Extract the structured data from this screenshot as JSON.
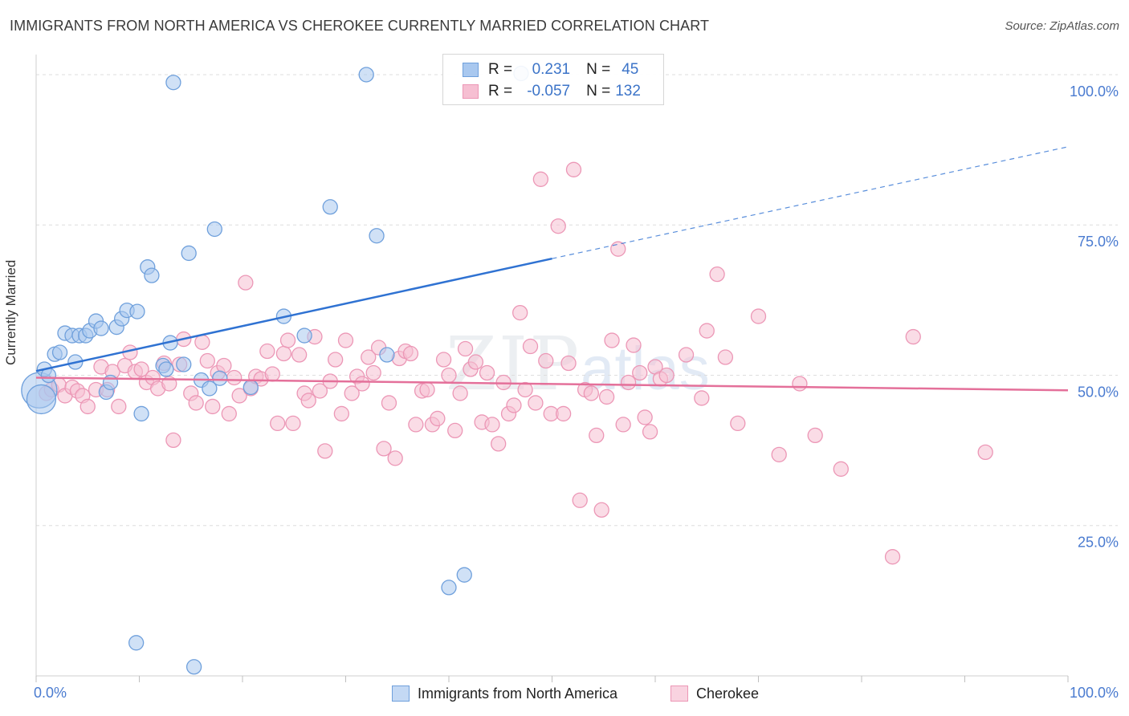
{
  "title": "IMMIGRANTS FROM NORTH AMERICA VS CHEROKEE CURRENTLY MARRIED CORRELATION CHART",
  "source": "Source: ZipAtlas.com",
  "watermark": {
    "zip": "ZIP",
    "atlas": "atlas"
  },
  "legend_top": [
    {
      "r_label": "R =",
      "r_value": "0.231",
      "n_label": "N =",
      "n_value": "45"
    },
    {
      "r_label": "R =",
      "r_value": "-0.057",
      "n_label": "N =",
      "n_value": "132"
    }
  ],
  "colors": {
    "blue_fill": "#a9c8ef",
    "blue_stroke": "#6fa0dc",
    "blue_line": "#2f72d2",
    "pink_fill": "#f6bfd2",
    "pink_stroke": "#ec97b6",
    "pink_line": "#e4709a",
    "tick_label": "#4a7bd0",
    "grid": "#dedede"
  },
  "chart_data": {
    "type": "scatter",
    "title": "IMMIGRANTS FROM NORTH AMERICA VS CHEROKEE CURRENTLY MARRIED CORRELATION CHART",
    "xlabel": "",
    "ylabel": "Currently Married",
    "xlim": [
      0,
      100
    ],
    "ylim": [
      0,
      102
    ],
    "x_tick_labels": [
      "0.0%",
      "100.0%"
    ],
    "y_ticks": [
      25,
      50,
      75,
      100
    ],
    "y_tick_labels": [
      "25.0%",
      "50.0%",
      "75.0%",
      "100.0%"
    ],
    "grid": true,
    "legend_placement": "top-center",
    "series": [
      {
        "name": "Immigrants from North America",
        "color": "#a9c8ef",
        "trend": {
          "x": [
            0,
            50
          ],
          "y": [
            50.7,
            69.4
          ],
          "dashed_extension_to": [
            100,
            88.0
          ]
        },
        "points": [
          [
            0.3,
            47.5,
            22
          ],
          [
            0.5,
            46.0,
            18
          ],
          [
            0.8,
            51.0,
            9
          ],
          [
            1.2,
            50.0,
            9
          ],
          [
            1.8,
            53.5,
            9
          ],
          [
            2.3,
            53.8,
            9
          ],
          [
            2.8,
            57.0,
            9
          ],
          [
            3.5,
            56.6,
            9
          ],
          [
            3.8,
            52.2,
            9
          ],
          [
            4.2,
            56.6,
            9
          ],
          [
            4.8,
            56.6,
            9
          ],
          [
            5.2,
            57.4,
            9
          ],
          [
            5.8,
            59.0,
            9
          ],
          [
            6.3,
            57.8,
            9
          ],
          [
            6.8,
            47.2,
            9
          ],
          [
            7.2,
            48.8,
            9
          ],
          [
            7.8,
            58.0,
            9
          ],
          [
            8.3,
            59.4,
            9
          ],
          [
            8.8,
            60.8,
            9
          ],
          [
            9.8,
            60.6,
            9
          ],
          [
            10.2,
            43.6,
            9
          ],
          [
            10.8,
            68.0,
            9
          ],
          [
            11.2,
            66.6,
            9
          ],
          [
            12.3,
            51.6,
            9
          ],
          [
            12.6,
            51.0,
            9
          ],
          [
            13.0,
            55.4,
            9
          ],
          [
            13.3,
            98.7,
            9
          ],
          [
            14.3,
            51.8,
            9
          ],
          [
            14.8,
            70.3,
            9
          ],
          [
            16.0,
            49.2,
            9
          ],
          [
            16.8,
            47.8,
            9
          ],
          [
            17.3,
            74.3,
            9
          ],
          [
            17.8,
            49.5,
            9
          ],
          [
            20.8,
            48.0,
            9
          ],
          [
            24.0,
            59.8,
            9
          ],
          [
            26.0,
            56.6,
            9
          ],
          [
            28.5,
            78.0,
            9
          ],
          [
            32.0,
            100.0,
            9
          ],
          [
            33.0,
            73.2,
            9
          ],
          [
            34.0,
            53.4,
            9
          ],
          [
            40.0,
            14.7,
            9
          ],
          [
            41.5,
            16.8,
            9
          ],
          [
            9.7,
            5.5,
            9
          ],
          [
            15.3,
            1.5,
            9
          ],
          [
            47.0,
            100.2,
            9
          ]
        ]
      },
      {
        "name": "Cherokee",
        "color": "#f6bfd2",
        "trend": {
          "x": [
            0,
            100
          ],
          "y": [
            49.6,
            47.5
          ]
        },
        "points": [
          [
            1.0,
            47.0,
            9
          ],
          [
            1.5,
            47.6,
            9
          ],
          [
            2.2,
            48.4,
            9
          ],
          [
            2.8,
            46.6,
            9
          ],
          [
            3.5,
            48.0,
            9
          ],
          [
            4.0,
            47.4,
            9
          ],
          [
            4.5,
            46.6,
            9
          ],
          [
            5.0,
            44.8,
            9
          ],
          [
            5.8,
            47.6,
            9
          ],
          [
            6.3,
            51.4,
            9
          ],
          [
            6.9,
            47.6,
            9
          ],
          [
            7.4,
            50.6,
            9
          ],
          [
            8.0,
            44.8,
            9
          ],
          [
            8.6,
            51.6,
            9
          ],
          [
            9.1,
            53.8,
            9
          ],
          [
            9.6,
            50.6,
            9
          ],
          [
            10.2,
            51.0,
            9
          ],
          [
            10.7,
            48.8,
            9
          ],
          [
            11.3,
            49.6,
            9
          ],
          [
            11.8,
            47.8,
            9
          ],
          [
            12.4,
            52.0,
            9
          ],
          [
            12.9,
            48.6,
            9
          ],
          [
            13.3,
            39.2,
            9
          ],
          [
            13.9,
            51.8,
            9
          ],
          [
            14.3,
            56.0,
            9
          ],
          [
            15.0,
            47.0,
            9
          ],
          [
            15.5,
            45.4,
            9
          ],
          [
            16.1,
            55.5,
            9
          ],
          [
            16.6,
            52.4,
            9
          ],
          [
            17.1,
            44.8,
            9
          ],
          [
            17.6,
            50.4,
            9
          ],
          [
            18.2,
            51.6,
            9
          ],
          [
            18.7,
            43.6,
            9
          ],
          [
            19.2,
            49.6,
            9
          ],
          [
            19.7,
            46.6,
            9
          ],
          [
            20.3,
            65.4,
            9
          ],
          [
            20.8,
            47.8,
            9
          ],
          [
            21.3,
            49.8,
            9
          ],
          [
            21.8,
            49.4,
            9
          ],
          [
            22.4,
            54.0,
            9
          ],
          [
            22.9,
            50.2,
            9
          ],
          [
            23.4,
            42.0,
            9
          ],
          [
            24.0,
            53.6,
            9
          ],
          [
            24.4,
            55.8,
            9
          ],
          [
            24.9,
            42.0,
            9
          ],
          [
            25.5,
            53.4,
            9
          ],
          [
            26.0,
            47.0,
            9
          ],
          [
            26.4,
            45.8,
            9
          ],
          [
            27.0,
            56.4,
            9
          ],
          [
            27.5,
            47.4,
            9
          ],
          [
            28.0,
            37.4,
            9
          ],
          [
            28.5,
            49.0,
            9
          ],
          [
            29.0,
            52.6,
            9
          ],
          [
            29.6,
            43.6,
            9
          ],
          [
            30.0,
            55.8,
            9
          ],
          [
            30.6,
            47.0,
            9
          ],
          [
            31.1,
            49.8,
            9
          ],
          [
            31.6,
            48.6,
            9
          ],
          [
            32.2,
            53.0,
            9
          ],
          [
            32.7,
            50.4,
            9
          ],
          [
            33.2,
            54.6,
            9
          ],
          [
            33.7,
            37.8,
            9
          ],
          [
            34.2,
            45.4,
            9
          ],
          [
            34.8,
            36.2,
            9
          ],
          [
            35.2,
            52.8,
            9
          ],
          [
            35.8,
            54.0,
            9
          ],
          [
            36.3,
            53.6,
            9
          ],
          [
            36.8,
            41.8,
            9
          ],
          [
            37.4,
            47.4,
            9
          ],
          [
            37.9,
            47.6,
            9
          ],
          [
            38.4,
            41.8,
            9
          ],
          [
            38.9,
            42.8,
            9
          ],
          [
            39.5,
            52.6,
            9
          ],
          [
            40.0,
            50.0,
            9
          ],
          [
            40.6,
            40.8,
            9
          ],
          [
            41.1,
            47.0,
            9
          ],
          [
            41.6,
            54.4,
            9
          ],
          [
            42.1,
            51.0,
            9
          ],
          [
            42.6,
            52.2,
            9
          ],
          [
            43.2,
            42.2,
            9
          ],
          [
            43.7,
            50.4,
            9
          ],
          [
            44.2,
            41.8,
            9
          ],
          [
            44.8,
            38.6,
            9
          ],
          [
            45.3,
            48.8,
            9
          ],
          [
            45.8,
            43.6,
            9
          ],
          [
            46.3,
            45.0,
            9
          ],
          [
            46.9,
            60.4,
            9
          ],
          [
            47.4,
            47.6,
            9
          ],
          [
            47.9,
            54.8,
            9
          ],
          [
            48.4,
            45.4,
            9
          ],
          [
            48.9,
            82.6,
            9
          ],
          [
            49.4,
            52.4,
            9
          ],
          [
            49.9,
            43.6,
            9
          ],
          [
            50.6,
            74.8,
            9
          ],
          [
            51.1,
            43.6,
            9
          ],
          [
            51.6,
            52.0,
            9
          ],
          [
            52.1,
            84.2,
            9
          ],
          [
            52.7,
            29.2,
            9
          ],
          [
            53.2,
            47.6,
            9
          ],
          [
            53.8,
            47.0,
            9
          ],
          [
            54.3,
            40.0,
            9
          ],
          [
            54.8,
            27.6,
            9
          ],
          [
            55.3,
            46.4,
            9
          ],
          [
            55.8,
            55.8,
            9
          ],
          [
            56.4,
            71.0,
            9
          ],
          [
            56.9,
            41.8,
            9
          ],
          [
            57.4,
            48.8,
            9
          ],
          [
            57.9,
            55.0,
            9
          ],
          [
            58.5,
            50.4,
            9
          ],
          [
            59.0,
            43.0,
            9
          ],
          [
            59.5,
            40.6,
            9
          ],
          [
            60.0,
            51.4,
            9
          ],
          [
            60.5,
            49.4,
            9
          ],
          [
            61.1,
            50.0,
            9
          ],
          [
            63.0,
            53.4,
            9
          ],
          [
            64.5,
            46.2,
            9
          ],
          [
            65.0,
            57.4,
            9
          ],
          [
            66.0,
            66.8,
            9
          ],
          [
            66.8,
            53.0,
            9
          ],
          [
            68.0,
            42.0,
            9
          ],
          [
            70.0,
            59.8,
            9
          ],
          [
            72.0,
            36.8,
            9
          ],
          [
            74.0,
            48.6,
            9
          ],
          [
            75.5,
            40.0,
            9
          ],
          [
            78.0,
            34.4,
            9
          ],
          [
            83.0,
            19.8,
            9
          ],
          [
            85.0,
            56.4,
            9
          ],
          [
            92.0,
            37.2,
            9
          ]
        ]
      }
    ]
  }
}
